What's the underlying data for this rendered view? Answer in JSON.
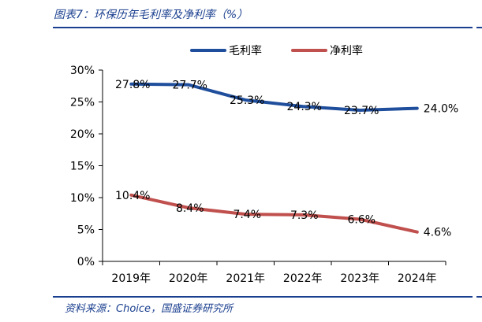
{
  "figure": {
    "title": "图表7：环保历年毛利率及净利率（%）",
    "source": "资料来源：Choice，国盛证券研究所"
  },
  "chart_data": {
    "type": "line",
    "x": [
      "2019年",
      "2020年",
      "2021年",
      "2022年",
      "2023年",
      "2024年"
    ],
    "yticks": [
      "0%",
      "5%",
      "10%",
      "15%",
      "20%",
      "25%",
      "30%"
    ],
    "ylim": [
      0,
      30
    ],
    "grid": false,
    "legend_position": "top-center",
    "series": [
      {
        "name": "毛利率",
        "color": "#1f4e9c",
        "values": [
          27.8,
          27.7,
          25.3,
          24.3,
          23.7,
          24.0
        ],
        "labels": [
          "27.8%",
          "27.7%",
          "25.3%",
          "24.3%",
          "23.7%",
          "24.0%"
        ]
      },
      {
        "name": "净利率",
        "color": "#c0504d",
        "values": [
          10.4,
          8.4,
          7.4,
          7.3,
          6.6,
          4.6
        ],
        "labels": [
          "10.4%",
          "8.4%",
          "7.4%",
          "7.3%",
          "6.6%",
          "4.6%"
        ]
      }
    ]
  }
}
